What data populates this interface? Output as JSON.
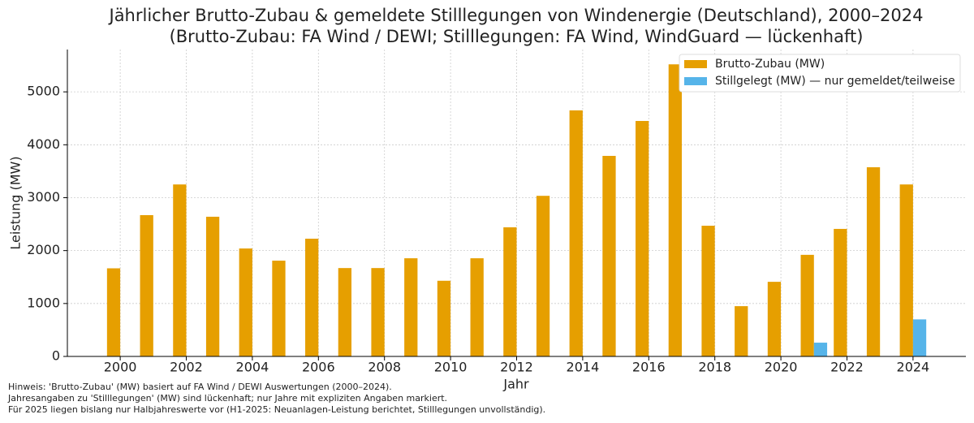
{
  "chart_data": {
    "type": "bar",
    "title": "Jährlicher Brutto-Zubau & gemeldete Stilllegungen von Windenergie (Deutschland), 2000–2024",
    "subtitle": "(Brutto-Zubau: FA Wind / DEWI; Stilllegungen: FA Wind, WindGuard — lückenhaft)",
    "xlabel": "Jahr",
    "ylabel": "Leistung (MW)",
    "x": [
      2000,
      2001,
      2002,
      2003,
      2004,
      2005,
      2006,
      2007,
      2008,
      2009,
      2010,
      2011,
      2012,
      2013,
      2014,
      2015,
      2016,
      2017,
      2018,
      2019,
      2020,
      2021,
      2022,
      2023,
      2024
    ],
    "series": [
      {
        "name": "Brutto-Zubau (MW)",
        "color": "#e69f00",
        "values": [
          1665,
          2670,
          3250,
          2640,
          2040,
          1810,
          2225,
          1670,
          1670,
          1855,
          1430,
          1855,
          2440,
          3035,
          4650,
          3790,
          4450,
          5520,
          2470,
          950,
          1410,
          1920,
          2410,
          3575,
          3250
        ]
      },
      {
        "name": "Stillgelegt (MW) — nur gemeldet/teilweise",
        "color": "#56b4e9",
        "values": [
          null,
          null,
          null,
          null,
          null,
          null,
          null,
          null,
          null,
          null,
          null,
          null,
          null,
          null,
          null,
          null,
          null,
          null,
          null,
          null,
          null,
          260,
          null,
          null,
          700
        ]
      }
    ],
    "xlim": [
      1998.4,
      2025.6
    ],
    "xticks": [
      2000,
      2002,
      2004,
      2006,
      2008,
      2010,
      2012,
      2014,
      2016,
      2018,
      2020,
      2022,
      2024
    ],
    "ylim": [
      0,
      5800
    ],
    "yticks": [
      0,
      1000,
      2000,
      3000,
      4000,
      5000
    ],
    "grid": true,
    "legend": "upper right",
    "notes": [
      "Hinweis: 'Brutto-Zubau' (MW) basiert auf FA Wind / DEWI Auswertungen (2000–2024).",
      "Jahresangaben zu 'Stilllegungen' (MW) sind lückenhaft; nur Jahre mit expliziten Angaben markiert.",
      "Für 2025 liegen bislang nur Halbjahreswerte vor (H1-2025: Neuanlagen-Leistung berichtet, Stilllegungen unvollständig)."
    ]
  }
}
